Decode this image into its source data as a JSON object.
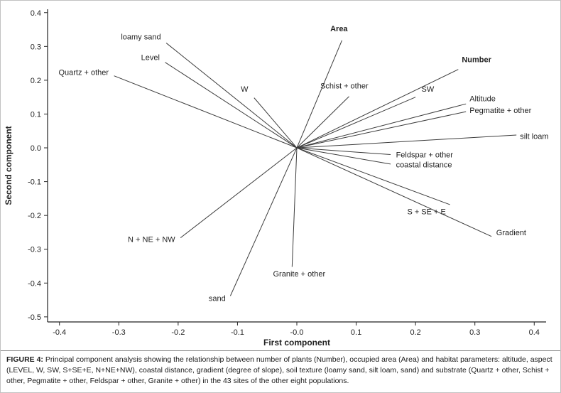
{
  "figure": {
    "caption_label": "FIGURE 4:",
    "caption_text": " Principal component analysis showing the relationship between number of plants (Number), occupied area (Area) and habitat parameters: altitude, aspect (LEVEL, W, SW, S+SE+E, N+NE+NW), coastal distance, gradient (degree of slope), soil texture (loamy sand, silt loam, sand) and substrate (Quartz + other, Schist + other, Pegmatite + other, Feldspar + other, Granite + other) in the 43 sites of the other eight populations."
  },
  "chart_data": {
    "type": "line",
    "subtype": "pca-biplot-vectors",
    "title": "",
    "xlabel": "First component",
    "ylabel": "Second component",
    "xlim": [
      -0.42,
      0.42
    ],
    "ylim": [
      -0.515,
      0.41
    ],
    "grid": false,
    "ink_color": "#222222",
    "line_color": "#3c3c3c",
    "x_ticks": [
      -0.4,
      -0.3,
      -0.2,
      -0.1,
      0.0,
      0.1,
      0.2,
      0.3,
      0.4
    ],
    "x_tick_labels": [
      "-0.4",
      "-0.3",
      "-0.2",
      "-0.1",
      "-0.0",
      "0.1",
      "0.2",
      "0.3",
      "0.4"
    ],
    "y_ticks": [
      -0.5,
      -0.4,
      -0.3,
      -0.2,
      -0.1,
      0.0,
      0.1,
      0.2,
      0.3,
      0.4
    ],
    "y_tick_labels": [
      "-0.5",
      "-0.4",
      "-0.3",
      "-0.2",
      "-0.1",
      "0.0",
      "0.1",
      "0.2",
      "0.3",
      "0.4"
    ],
    "vectors": [
      {
        "label": "loamy sand",
        "x": -0.22,
        "y": 0.31,
        "lx": -0.229,
        "ly": 0.321,
        "anchor": "end",
        "bold": false
      },
      {
        "label": "Level",
        "x": -0.222,
        "y": 0.253,
        "lx": -0.231,
        "ly": 0.26,
        "anchor": "end",
        "bold": false
      },
      {
        "label": "Quartz + other",
        "x": -0.308,
        "y": 0.213,
        "lx": -0.317,
        "ly": 0.216,
        "anchor": "end",
        "bold": false
      },
      {
        "label": "W",
        "x": -0.072,
        "y": 0.148,
        "lx": -0.082,
        "ly": 0.166,
        "anchor": "end",
        "bold": false
      },
      {
        "label": "Area",
        "x": 0.076,
        "y": 0.318,
        "lx": 0.071,
        "ly": 0.345,
        "anchor": "middle",
        "bold": true
      },
      {
        "label": "Schist + other",
        "x": 0.088,
        "y": 0.152,
        "lx": 0.08,
        "ly": 0.176,
        "anchor": "middle",
        "bold": false
      },
      {
        "label": "Number",
        "x": 0.272,
        "y": 0.232,
        "lx": 0.278,
        "ly": 0.253,
        "anchor": "start",
        "bold": true
      },
      {
        "label": "SW",
        "x": 0.2,
        "y": 0.15,
        "lx": 0.21,
        "ly": 0.166,
        "anchor": "start",
        "bold": false
      },
      {
        "label": "Altitude",
        "x": 0.285,
        "y": 0.13,
        "lx": 0.291,
        "ly": 0.138,
        "anchor": "start",
        "bold": false
      },
      {
        "label": "Pegmatite + other",
        "x": 0.285,
        "y": 0.107,
        "lx": 0.291,
        "ly": 0.103,
        "anchor": "start",
        "bold": false
      },
      {
        "label": "silt loam",
        "x": 0.37,
        "y": 0.038,
        "lx": 0.376,
        "ly": 0.026,
        "anchor": "start",
        "bold": false
      },
      {
        "label": "Feldspar + other",
        "x": 0.158,
        "y": -0.02,
        "lx": 0.167,
        "ly": -0.028,
        "anchor": "start",
        "bold": false
      },
      {
        "label": "coastal distance",
        "x": 0.158,
        "y": -0.048,
        "lx": 0.167,
        "ly": -0.058,
        "anchor": "start",
        "bold": false
      },
      {
        "label": "S + SE + E",
        "x": 0.258,
        "y": -0.168,
        "lx": 0.186,
        "ly": -0.196,
        "anchor": "start",
        "bold": false
      },
      {
        "label": "Gradient",
        "x": 0.328,
        "y": -0.262,
        "lx": 0.336,
        "ly": -0.258,
        "anchor": "start",
        "bold": false
      },
      {
        "label": "N + NE + NW",
        "x": -0.196,
        "y": -0.266,
        "lx": -0.205,
        "ly": -0.278,
        "anchor": "end",
        "bold": false
      },
      {
        "label": "Granite + other",
        "x": -0.008,
        "y": -0.352,
        "lx": 0.004,
        "ly": -0.38,
        "anchor": "middle",
        "bold": false
      },
      {
        "label": "sand",
        "x": -0.112,
        "y": -0.438,
        "lx": -0.12,
        "ly": -0.453,
        "anchor": "end",
        "bold": false
      }
    ]
  }
}
